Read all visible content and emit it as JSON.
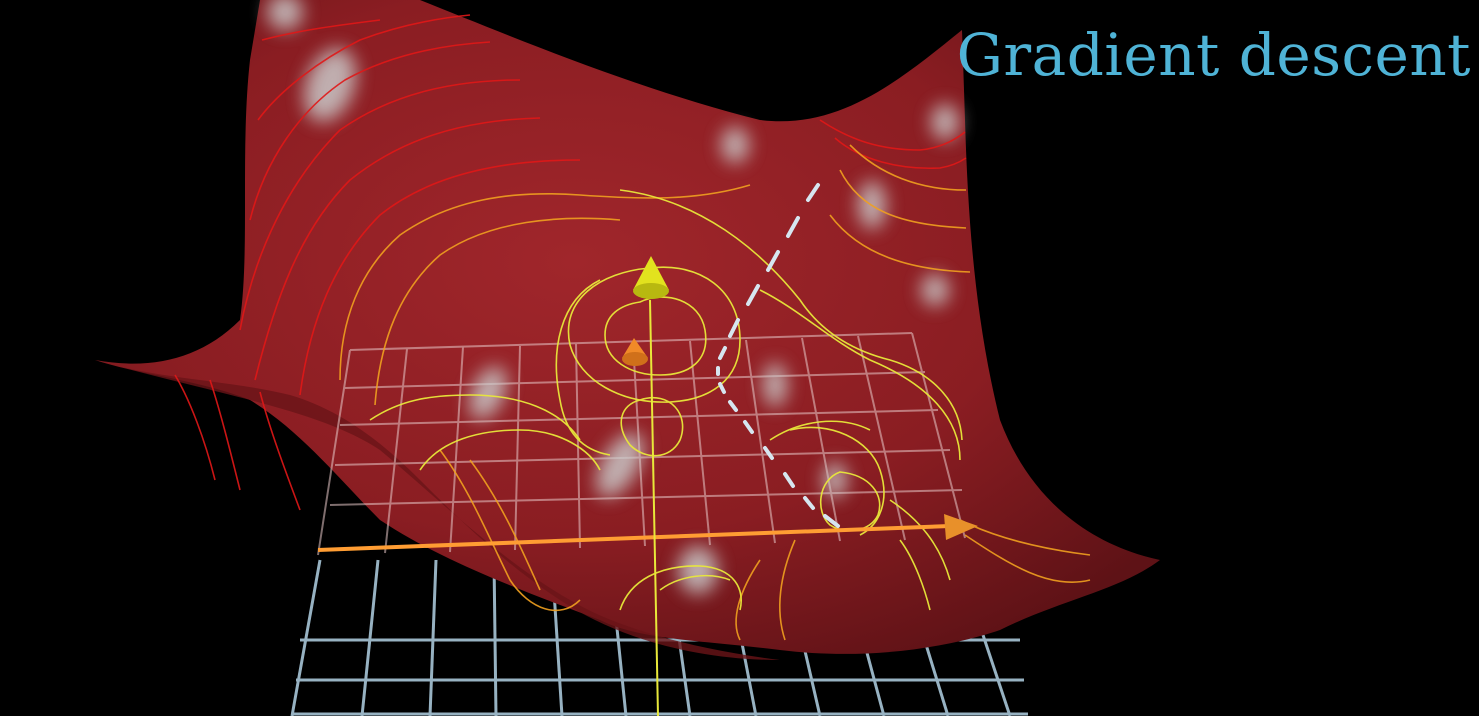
{
  "title": "Gradient descent",
  "colors": {
    "background": "#000000",
    "title": "#4fb3d6",
    "surface": "#8e1f24",
    "surface_dark": "#5a1014",
    "highlight": "#c9c9c9",
    "contour_outer": "#e01818",
    "contour_mid": "#f0a020",
    "contour_inner": "#e8e83a",
    "grid": "#a8c6d8",
    "axis": "#ff9d33",
    "z_axis": "#e8e82a",
    "path": "#d6e6f0"
  },
  "icons": {
    "z_axis_tip": "cone-arrow-icon",
    "x_axis_tip": "cone-arrow-icon",
    "origin_marker": "cone-marker-icon"
  }
}
